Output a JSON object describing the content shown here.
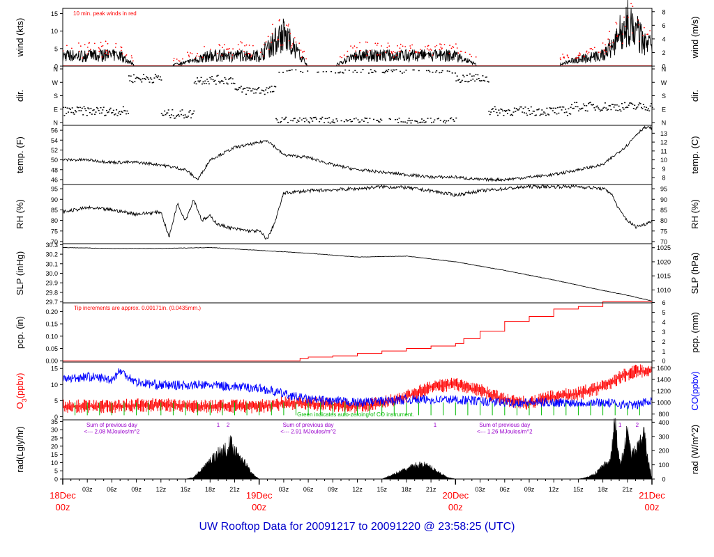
{
  "footer": {
    "title": "UW Rooftop Data for 20091217  to  20091220 @ 23:58:25  (UTC)"
  },
  "colors": {
    "wind_peak": "#ff0000",
    "precip": "#ff0000",
    "ozone": "#ff0000",
    "co": "#0000ff",
    "co_zero": "#00bb00",
    "annotation": "#9900cc",
    "date_label": "#ff0000",
    "footer": "#0000cc",
    "trace": "#000000"
  },
  "x_axis": {
    "major_labels": [
      {
        "day": "18Dec",
        "time": "00z"
      },
      {
        "day": "19Dec",
        "time": "00z"
      },
      {
        "day": "20Dec",
        "time": "00z"
      },
      {
        "day": "21Dec",
        "time": "00z"
      }
    ],
    "hour_labels": [
      "03z",
      "06z",
      "09z",
      "12z",
      "15z",
      "18z",
      "21z"
    ]
  },
  "chart_data": [
    {
      "type": "line",
      "id": "wind",
      "ylabel": "wind (kts)",
      "ylabel_right": "wind (m/s)",
      "ylim": [
        0,
        16.5
      ],
      "yticks": [
        0,
        5,
        10,
        15
      ],
      "yticks_right": [
        0,
        2,
        4,
        6,
        8
      ],
      "right_scale": 1.944,
      "annotation": "10 min. peak winds in red",
      "series_profile": {
        "x": [
          0,
          3,
          5,
          7,
          9,
          12,
          15,
          18,
          21,
          24,
          27,
          30,
          33,
          36,
          39,
          42,
          45,
          48,
          51,
          54,
          57,
          60,
          63,
          66,
          69,
          72
        ],
        "y": [
          3,
          3,
          3,
          3,
          0,
          0,
          1,
          3,
          3,
          3,
          9,
          0,
          0,
          3,
          3,
          3,
          3,
          3,
          0,
          0,
          0,
          0,
          2,
          3,
          12,
          5
        ]
      }
    },
    {
      "type": "scatter",
      "id": "dir",
      "ylabel": "dir.",
      "ylabel_right": "dir.",
      "yticks_labels": [
        "N",
        "E",
        "S",
        "W",
        "N"
      ]
    },
    {
      "type": "line",
      "id": "temp",
      "ylabel": "temp. (F)",
      "ylabel_right": "temp. (C)",
      "ylim": [
        45,
        57
      ],
      "yticks": [
        46,
        48,
        50,
        52,
        54,
        56
      ],
      "yticks_right": [
        8,
        9,
        10,
        11,
        12,
        13
      ],
      "x": [
        0,
        3,
        6,
        9,
        12,
        15,
        16.5,
        18,
        21,
        24,
        25,
        27,
        30,
        33,
        36,
        39,
        42,
        45,
        48,
        51,
        54,
        57,
        60,
        63,
        66,
        69,
        70,
        71,
        72
      ],
      "y": [
        50,
        50,
        49.5,
        49.5,
        49,
        48,
        46,
        50,
        52.5,
        53.5,
        54,
        51,
        50.5,
        49,
        48,
        47.5,
        47,
        46.5,
        46.5,
        46,
        46,
        46.5,
        47,
        48,
        49,
        53,
        55,
        56.5,
        56.5
      ]
    },
    {
      "type": "line",
      "id": "rh",
      "ylabel": "RH (%)",
      "ylabel_right": "RH (%)",
      "ylim": [
        69,
        97
      ],
      "yticks": [
        70,
        75,
        80,
        85,
        90,
        95
      ],
      "yticks_right": [
        70,
        75,
        80,
        85,
        90,
        95
      ],
      "x": [
        0,
        3,
        6,
        9,
        12,
        13,
        14,
        15,
        16,
        17,
        18,
        19,
        21,
        23,
        24,
        25,
        26,
        27,
        30,
        33,
        36,
        39,
        42,
        45,
        48,
        51,
        54,
        57,
        60,
        63,
        66,
        67,
        68,
        69,
        70,
        71,
        72
      ],
      "y": [
        84,
        86,
        85,
        83,
        84,
        72,
        88,
        80,
        90,
        80,
        82,
        78,
        76,
        75,
        75,
        71,
        80,
        93,
        94,
        94.5,
        95,
        96,
        95.5,
        94,
        92,
        94,
        95,
        96,
        96,
        96,
        95,
        93,
        85,
        80,
        77,
        78,
        80
      ]
    },
    {
      "type": "line",
      "id": "slp",
      "ylabel": "SLP (inHg)",
      "ylabel_right": "SLP (hPa)",
      "ylim": [
        29.69,
        30.31
      ],
      "yticks": [
        29.7,
        29.8,
        29.9,
        30.0,
        30.1,
        30.2,
        30.3
      ],
      "yticks_right": [
        1010,
        1015,
        1020,
        1025
      ],
      "right_scale": 33.8639,
      "x": [
        0,
        6,
        12,
        18,
        24,
        30,
        36,
        42,
        48,
        54,
        60,
        66,
        69,
        72
      ],
      "y": [
        30.27,
        30.26,
        30.26,
        30.27,
        30.24,
        30.21,
        30.17,
        30.18,
        30.12,
        30.03,
        29.93,
        29.82,
        29.77,
        29.71
      ]
    },
    {
      "type": "line",
      "id": "pcp",
      "ylabel": "pcp. (in)",
      "ylabel_right": "pcp. (mm)",
      "ylim": [
        -0.005,
        0.235
      ],
      "yticks": [
        0.0,
        0.05,
        0.1,
        0.15,
        0.2
      ],
      "yticks_right": [
        0,
        1,
        2,
        3,
        4,
        5,
        6
      ],
      "right_scale": 0.03937,
      "annotation": "Tip increments are approx. 0.00171in. (0.0435mm.)",
      "x": [
        0,
        28,
        29,
        30,
        33,
        36,
        39,
        42,
        45,
        48,
        49,
        51,
        54,
        57,
        60,
        63,
        66,
        69,
        72
      ],
      "y": [
        0,
        0,
        0.01,
        0.015,
        0.02,
        0.03,
        0.04,
        0.05,
        0.06,
        0.07,
        0.09,
        0.12,
        0.16,
        0.18,
        0.21,
        0.22,
        0.24,
        0.24,
        0.24
      ]
    },
    {
      "type": "line",
      "id": "o3_co",
      "ylabel_left_parts": [
        "O",
        "3",
        "(ppbv)"
      ],
      "ylabel_right": "CO(ppbv)",
      "ylim": [
        -1,
        17
      ],
      "yticks": [
        0,
        5,
        10,
        15
      ],
      "yticks_right": [
        800,
        1000,
        1200,
        1400,
        1600
      ],
      "co_ylim": [
        700,
        1700
      ],
      "annotation": "Green indicates auto-zeroing of CO instrument.",
      "series": [
        {
          "name": "O3",
          "x": [
            0,
            6,
            12,
            18,
            24,
            27,
            30,
            36,
            39,
            42,
            45,
            48,
            51,
            54,
            57,
            60,
            63,
            66,
            68,
            70,
            72
          ],
          "y": [
            4,
            4,
            4.5,
            4,
            4,
            5,
            5,
            4,
            5,
            7,
            10,
            11,
            9,
            6,
            5,
            7,
            8,
            10,
            13,
            15,
            15
          ]
        },
        {
          "name": "CO",
          "x": [
            0,
            3,
            6,
            7,
            9,
            12,
            18,
            24,
            27,
            30,
            36,
            42,
            48,
            54,
            60,
            66,
            70,
            72
          ],
          "y": [
            1400,
            1450,
            1400,
            1550,
            1350,
            1300,
            1300,
            1250,
            1150,
            1050,
            1000,
            1050,
            1050,
            1000,
            1000,
            1000,
            950,
            1050
          ]
        }
      ]
    },
    {
      "type": "area",
      "id": "rad",
      "ylabel": "rad(Lgly/hr)",
      "ylabel_right": "rad (W/m^2)",
      "ylim": [
        0,
        36
      ],
      "yticks": [
        0,
        5,
        10,
        15,
        20,
        25,
        30,
        35
      ],
      "yticks_right": [
        0,
        100,
        200,
        300,
        400
      ],
      "right_scale": 0.0864,
      "annotations": [
        {
          "x": 19,
          "text": "1",
          "y": 33
        },
        {
          "x": 20.2,
          "text": "2",
          "y": 33
        },
        {
          "x": 6,
          "text": "Sum of previous day",
          "y": 33
        },
        {
          "x": 6,
          "text": "<--- 2.08 MJoules/m^2",
          "y": 29
        },
        {
          "x": 30,
          "text": "Sum of previous day",
          "y": 33
        },
        {
          "x": 30,
          "text": "<--- 2.91 MJoules/m^2",
          "y": 29
        },
        {
          "x": 45.5,
          "text": "1",
          "y": 33
        },
        {
          "x": 54,
          "text": "Sum of previous day",
          "y": 33
        },
        {
          "x": 54,
          "text": "<--- 1.26 MJoules/m^2",
          "y": 29
        },
        {
          "x": 68.1,
          "text": "1",
          "y": 33
        },
        {
          "x": 70.2,
          "text": "2",
          "y": 33
        }
      ],
      "x": [
        0,
        15,
        16,
        17,
        18,
        19,
        20,
        20.5,
        21,
        22,
        23,
        24,
        39,
        40,
        41,
        42,
        43,
        44,
        45,
        46,
        47,
        48,
        63,
        64,
        65,
        66,
        66.5,
        67,
        67.5,
        68,
        68.5,
        69,
        69.5,
        70,
        70.5,
        71,
        71.5,
        72
      ],
      "y": [
        0,
        0,
        1,
        6,
        11,
        16,
        18,
        22,
        18,
        12,
        4,
        0,
        0,
        2,
        4,
        6,
        8,
        9,
        7,
        4,
        1,
        0,
        0,
        1,
        3,
        8,
        10,
        14,
        34,
        10,
        14,
        30,
        14,
        18,
        20,
        28,
        12,
        0
      ]
    }
  ]
}
